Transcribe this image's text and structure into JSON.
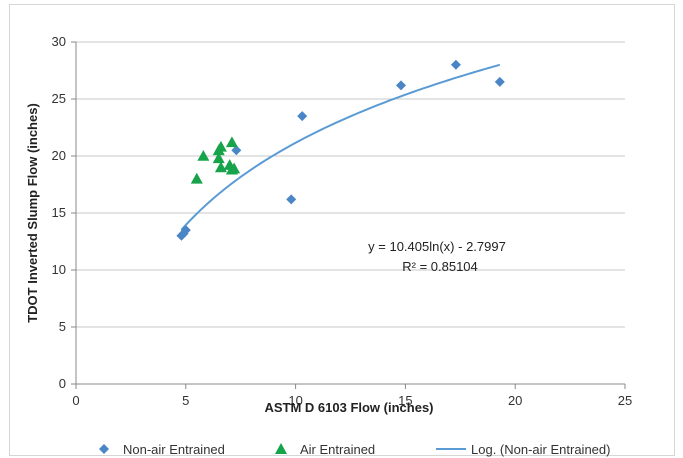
{
  "chart_data": {
    "type": "scatter",
    "title": "",
    "xlabel": "ASTM D 6103 Flow (inches)",
    "ylabel": "TDOT Inverted Slump Flow (inches)",
    "xlim": [
      0,
      25
    ],
    "ylim": [
      0,
      30
    ],
    "xticks": [
      0,
      5,
      10,
      15,
      20,
      25
    ],
    "yticks": [
      0,
      5,
      10,
      15,
      20,
      25,
      30
    ],
    "grid": "horizontal",
    "legend_position": "bottom",
    "series": [
      {
        "name": "Non-air Entrained",
        "marker": "diamond",
        "color": "#4a86c5",
        "points": [
          {
            "x": 4.8,
            "y": 13.0
          },
          {
            "x": 4.9,
            "y": 13.2
          },
          {
            "x": 5.0,
            "y": 13.5
          },
          {
            "x": 7.3,
            "y": 20.5
          },
          {
            "x": 9.8,
            "y": 16.2
          },
          {
            "x": 10.3,
            "y": 23.5
          },
          {
            "x": 14.8,
            "y": 26.2
          },
          {
            "x": 17.3,
            "y": 28.0
          },
          {
            "x": 19.3,
            "y": 26.5
          }
        ]
      },
      {
        "name": "Air Entrained",
        "marker": "triangle",
        "color": "#16a34a",
        "points": [
          {
            "x": 5.5,
            "y": 18.0
          },
          {
            "x": 5.8,
            "y": 20.0
          },
          {
            "x": 6.5,
            "y": 20.5
          },
          {
            "x": 6.6,
            "y": 20.8
          },
          {
            "x": 6.5,
            "y": 19.8
          },
          {
            "x": 6.6,
            "y": 19.0
          },
          {
            "x": 7.0,
            "y": 19.2
          },
          {
            "x": 7.1,
            "y": 21.2
          },
          {
            "x": 7.1,
            "y": 18.8
          },
          {
            "x": 7.2,
            "y": 18.9
          }
        ]
      },
      {
        "name": "Log. (Non-air Entrained)",
        "type": "trendline",
        "model": "log",
        "a": 10.405,
        "b": -2.7997,
        "x_range": [
          4.8,
          19.3
        ],
        "color": "#5b9bd5"
      }
    ],
    "annotations": [
      "y = 10.405ln(x) - 2.7997",
      "R² = 0.85104"
    ]
  }
}
